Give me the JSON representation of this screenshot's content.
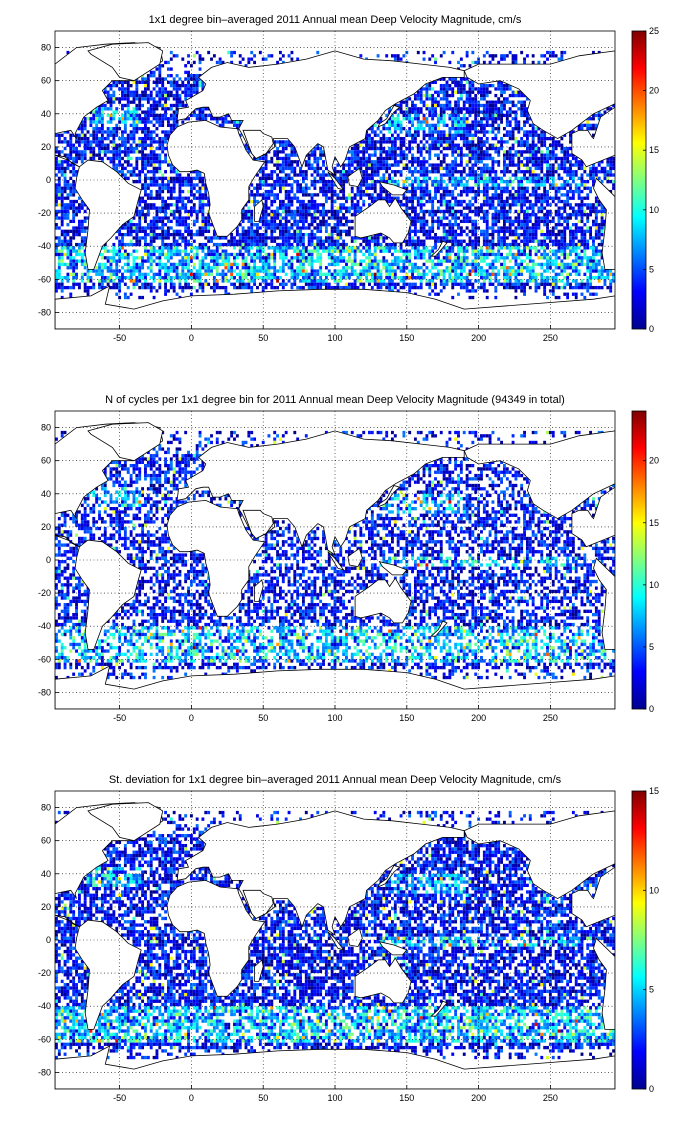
{
  "figure": {
    "panels": [
      {
        "id": "mean",
        "title": "1x1 degree bin–averaged 2011 Annual mean Deep Velocity Magnitude, cm/s",
        "xticks": [
          "-50",
          "0",
          "50",
          "100",
          "150",
          "200",
          "250"
        ],
        "yticks": [
          "80",
          "60",
          "40",
          "20",
          "0",
          "-20",
          "-40",
          "-60",
          "-80"
        ],
        "colorbar_ticks": [
          "25",
          "20",
          "15",
          "10",
          "5",
          "0"
        ],
        "colorbar_range": [
          0,
          25
        ]
      },
      {
        "id": "count",
        "title": "N of cycles per 1x1 degree bin for 2011 Annual mean Deep Velocity Magnitude (94349 in total)",
        "xticks": [
          "-50",
          "0",
          "50",
          "100",
          "150",
          "200",
          "250"
        ],
        "yticks": [
          "80",
          "60",
          "40",
          "20",
          "0",
          "-20",
          "-40",
          "-60",
          "-80"
        ],
        "colorbar_ticks": [
          "20",
          "15",
          "10",
          "5",
          "0"
        ],
        "colorbar_range": [
          0,
          24
        ]
      },
      {
        "id": "std",
        "title": "St. deviation for 1x1 degree bin–averaged 2011 Annual mean Deep Velocity Magnitude, cm/s",
        "xticks": [
          "-50",
          "0",
          "50",
          "100",
          "150",
          "200",
          "250"
        ],
        "yticks": [
          "80",
          "60",
          "40",
          "20",
          "0",
          "-20",
          "-40",
          "-60",
          "-80"
        ],
        "colorbar_ticks": [
          "15",
          "10",
          "5",
          "0"
        ],
        "colorbar_range": [
          0,
          15
        ]
      }
    ]
  },
  "chart_data": [
    {
      "type": "heatmap",
      "title": "1x1 degree bin–averaged 2011 Annual mean Deep Velocity Magnitude, cm/s",
      "xlim": [
        -95,
        295
      ],
      "ylim": [
        -90,
        90
      ],
      "colormap": "jet",
      "clim": [
        0,
        25
      ],
      "grid": true,
      "colorbar": "right",
      "x_ticks": [
        -50,
        0,
        50,
        100,
        150,
        200,
        250
      ],
      "y_ticks": [
        80,
        60,
        40,
        20,
        0,
        -20,
        -40,
        -60,
        -80
      ]
    },
    {
      "type": "heatmap",
      "title": "N of cycles per 1x1 degree bin for 2011 Annual mean Deep Velocity Magnitude (94349 in total)",
      "xlim": [
        -95,
        295
      ],
      "ylim": [
        -90,
        90
      ],
      "colormap": "jet",
      "clim": [
        0,
        24
      ],
      "grid": true,
      "colorbar": "right",
      "x_ticks": [
        -50,
        0,
        50,
        100,
        150,
        200,
        250
      ],
      "y_ticks": [
        80,
        60,
        40,
        20,
        0,
        -20,
        -40,
        -60,
        -80
      ]
    },
    {
      "type": "heatmap",
      "title": "St. deviation for 1x1 degree bin–averaged 2011 Annual mean Deep Velocity Magnitude, cm/s",
      "xlim": [
        -95,
        295
      ],
      "ylim": [
        -90,
        90
      ],
      "colormap": "jet",
      "clim": [
        0,
        15
      ],
      "grid": true,
      "colorbar": "right",
      "x_ticks": [
        -50,
        0,
        50,
        100,
        150,
        200,
        250
      ],
      "y_ticks": [
        80,
        60,
        40,
        20,
        0,
        -20,
        -40,
        -60,
        -80
      ]
    }
  ]
}
